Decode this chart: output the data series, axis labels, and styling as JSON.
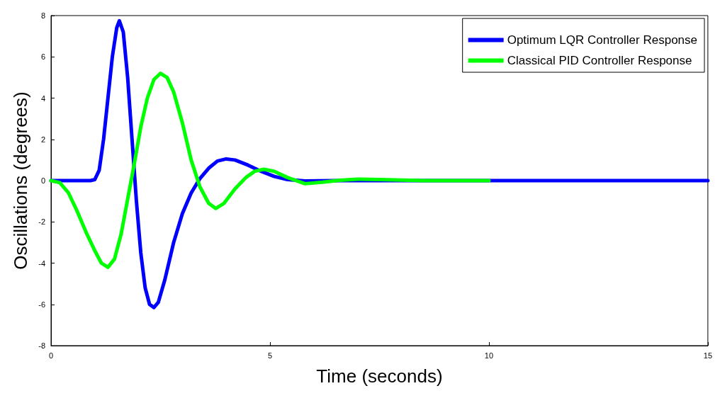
{
  "chart_data": {
    "type": "line",
    "xlabel": "Time (seconds)",
    "ylabel": "Oscillations (degrees)",
    "xlim": [
      0,
      15
    ],
    "xticks": [
      0,
      5,
      10,
      15
    ],
    "ylim": [
      -8,
      8
    ],
    "yticks": [
      -8,
      -6,
      -4,
      -2,
      0,
      2,
      4,
      6,
      8
    ],
    "grid": false,
    "legend": "top right",
    "marker": "none",
    "line_style": "solid",
    "series": [
      {
        "name": "Optimum LQR Controller Response",
        "color": "#0000ff",
        "x": [
          0,
          0.9,
          1.0,
          1.1,
          1.2,
          1.3,
          1.4,
          1.5,
          1.56,
          1.65,
          1.75,
          1.85,
          1.95,
          2.05,
          2.15,
          2.25,
          2.35,
          2.45,
          2.6,
          2.8,
          3.0,
          3.2,
          3.4,
          3.6,
          3.8,
          4.0,
          4.2,
          4.5,
          4.8,
          5.1,
          5.4,
          5.8,
          6.5,
          15
        ],
        "values": [
          0,
          0,
          0.05,
          0.5,
          2,
          4,
          6,
          7.4,
          7.75,
          7.2,
          5,
          2,
          -1,
          -3.5,
          -5.2,
          -6,
          -6.15,
          -5.9,
          -4.8,
          -3,
          -1.6,
          -0.6,
          0.1,
          0.6,
          0.95,
          1.05,
          1.0,
          0.75,
          0.45,
          0.2,
          0.05,
          -0.02,
          0,
          0
        ]
      },
      {
        "name": "Classical PID Controller Response",
        "color": "#00ff00",
        "x": [
          0,
          0.2,
          0.4,
          0.6,
          0.8,
          1.0,
          1.15,
          1.3,
          1.45,
          1.6,
          1.75,
          1.9,
          2.05,
          2.2,
          2.35,
          2.5,
          2.65,
          2.8,
          3.0,
          3.2,
          3.4,
          3.6,
          3.76,
          3.95,
          4.2,
          4.45,
          4.65,
          4.86,
          5.1,
          5.4,
          5.8,
          6.2,
          6.6,
          7.0,
          7.5,
          8.5,
          10
        ],
        "values": [
          0,
          -0.1,
          -0.6,
          -1.5,
          -2.5,
          -3.4,
          -4.0,
          -4.2,
          -3.8,
          -2.6,
          -0.9,
          0.8,
          2.6,
          4.0,
          4.9,
          5.2,
          5.0,
          4.3,
          2.8,
          1.0,
          -0.3,
          -1.1,
          -1.35,
          -1.1,
          -0.4,
          0.15,
          0.45,
          0.55,
          0.45,
          0.15,
          -0.15,
          -0.08,
          0.02,
          0.07,
          0.05,
          0,
          0
        ]
      }
    ]
  }
}
